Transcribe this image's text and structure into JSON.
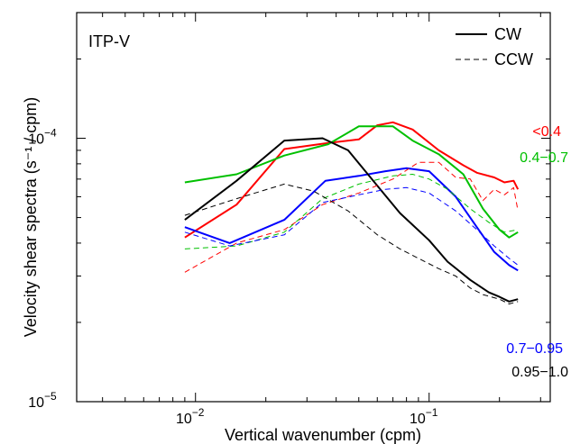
{
  "chart_data": {
    "type": "line",
    "title": "",
    "panel_label": "ITP-V",
    "xlabel": "Vertical wavenumber (cpm)",
    "ylabel": "Velocity shear spectra (s⁻¹ / cpm)",
    "x_scale": "log",
    "y_scale": "log",
    "xlim": [
      0.0031,
      0.33
    ],
    "ylim": [
      1e-05,
      0.0003
    ],
    "grid": false,
    "x_ticks": [
      {
        "value": 0.01,
        "base": "10",
        "exp": "−2"
      },
      {
        "value": 0.1,
        "base": "10",
        "exp": "−1"
      }
    ],
    "y_ticks": [
      {
        "value": 1e-05,
        "base": "10",
        "exp": "−5"
      },
      {
        "value": 0.0001,
        "base": "10",
        "exp": "−4"
      }
    ],
    "legend": {
      "position": "top-right",
      "entries": [
        {
          "label": "CW",
          "style": "solid",
          "color": "#000000"
        },
        {
          "label": "CCW",
          "style": "dashed",
          "color": "#000000"
        }
      ]
    },
    "annotations": [
      {
        "text": "<0.4",
        "color": "#ff0000"
      },
      {
        "text": "0.4−0.7",
        "color": "#00c000"
      },
      {
        "text": "0.7−0.95",
        "color": "#0000ff"
      },
      {
        "text": "0.95−1.0",
        "color": "#000000"
      }
    ],
    "series": [
      {
        "group": "<0.4",
        "direction": "CW",
        "color": "#ff0000",
        "style": "solid",
        "x": [
          0.009,
          0.015,
          0.024,
          0.037,
          0.05,
          0.06,
          0.07,
          0.085,
          0.11,
          0.14,
          0.16,
          0.19,
          0.21,
          0.23,
          0.24
        ],
        "y": [
          4.2e-05,
          5.6e-05,
          9.1e-05,
          9.6e-05,
          9.9e-05,
          0.000112,
          0.000115,
          0.000108,
          9e-05,
          7.9e-05,
          7.4e-05,
          7.1e-05,
          6.8e-05,
          6.9e-05,
          6.4e-05
        ]
      },
      {
        "group": "0.4−0.7",
        "direction": "CW",
        "color": "#00c000",
        "style": "solid",
        "x": [
          0.009,
          0.015,
          0.024,
          0.037,
          0.05,
          0.07,
          0.085,
          0.11,
          0.14,
          0.17,
          0.2,
          0.22,
          0.24
        ],
        "y": [
          6.8e-05,
          7.3e-05,
          8.6e-05,
          9.5e-05,
          0.000111,
          0.000111,
          9.8e-05,
          8.7e-05,
          7.3e-05,
          5.4e-05,
          4.5e-05,
          4.2e-05,
          4.4e-05
        ]
      },
      {
        "group": "0.7−0.95",
        "direction": "CW",
        "color": "#0000ff",
        "style": "solid",
        "x": [
          0.009,
          0.014,
          0.024,
          0.036,
          0.05,
          0.065,
          0.08,
          0.1,
          0.13,
          0.16,
          0.19,
          0.22,
          0.24
        ],
        "y": [
          4.6e-05,
          4e-05,
          4.9e-05,
          6.9e-05,
          7.2e-05,
          7.5e-05,
          7.7e-05,
          7.5e-05,
          6e-05,
          4.6e-05,
          3.7e-05,
          3.3e-05,
          3.15e-05
        ]
      },
      {
        "group": "0.95−1.0",
        "direction": "CW",
        "color": "#000000",
        "style": "solid",
        "x": [
          0.009,
          0.015,
          0.024,
          0.035,
          0.045,
          0.06,
          0.075,
          0.1,
          0.12,
          0.15,
          0.18,
          0.2,
          0.22,
          0.24
        ],
        "y": [
          4.9e-05,
          6.9e-05,
          9.8e-05,
          0.0001,
          9e-05,
          6.6e-05,
          5.2e-05,
          4.1e-05,
          3.4e-05,
          2.9e-05,
          2.6e-05,
          2.5e-05,
          2.4e-05,
          2.45e-05
        ]
      },
      {
        "group": "<0.4",
        "direction": "CCW",
        "color": "#ff0000",
        "style": "dashed",
        "x": [
          0.009,
          0.015,
          0.024,
          0.035,
          0.05,
          0.07,
          0.09,
          0.11,
          0.13,
          0.15,
          0.17,
          0.19,
          0.21,
          0.23,
          0.24
        ],
        "y": [
          3.1e-05,
          4e-05,
          4.5e-05,
          5.6e-05,
          6.2e-05,
          7e-05,
          8.1e-05,
          8.1e-05,
          7.1e-05,
          7e-05,
          5.8e-05,
          6.4e-05,
          6.1e-05,
          6.5e-05,
          5.3e-05
        ]
      },
      {
        "group": "0.4−0.7",
        "direction": "CCW",
        "color": "#00c000",
        "style": "dashed",
        "x": [
          0.009,
          0.015,
          0.024,
          0.035,
          0.05,
          0.07,
          0.085,
          0.1,
          0.12,
          0.15,
          0.18,
          0.21,
          0.24
        ],
        "y": [
          3.8e-05,
          3.9e-05,
          4.4e-05,
          5.9e-05,
          6.7e-05,
          7.2e-05,
          7.3e-05,
          7e-05,
          6.4e-05,
          5.4e-05,
          4.8e-05,
          4.4e-05,
          4.5e-05
        ]
      },
      {
        "group": "0.7−0.95",
        "direction": "CCW",
        "color": "#0000ff",
        "style": "dashed",
        "x": [
          0.009,
          0.014,
          0.024,
          0.035,
          0.05,
          0.065,
          0.08,
          0.1,
          0.13,
          0.16,
          0.19,
          0.22,
          0.24
        ],
        "y": [
          4.4e-05,
          3.9e-05,
          4.3e-05,
          5.7e-05,
          6.1e-05,
          6.4e-05,
          6.5e-05,
          6.2e-05,
          5.3e-05,
          4.5e-05,
          3.9e-05,
          3.5e-05,
          3.3e-05
        ]
      },
      {
        "group": "0.95−1.0",
        "direction": "CCW",
        "color": "#000000",
        "style": "dashed",
        "x": [
          0.009,
          0.015,
          0.024,
          0.032,
          0.045,
          0.06,
          0.075,
          0.09,
          0.11,
          0.13,
          0.15,
          0.17,
          0.2,
          0.22,
          0.24
        ],
        "y": [
          5.1e-05,
          5.9e-05,
          6.7e-05,
          6.3e-05,
          5.3e-05,
          4.3e-05,
          3.8e-05,
          3.5e-05,
          3.2e-05,
          3e-05,
          2.7e-05,
          2.55e-05,
          2.45e-05,
          2.35e-05,
          2.4e-05
        ]
      }
    ]
  }
}
